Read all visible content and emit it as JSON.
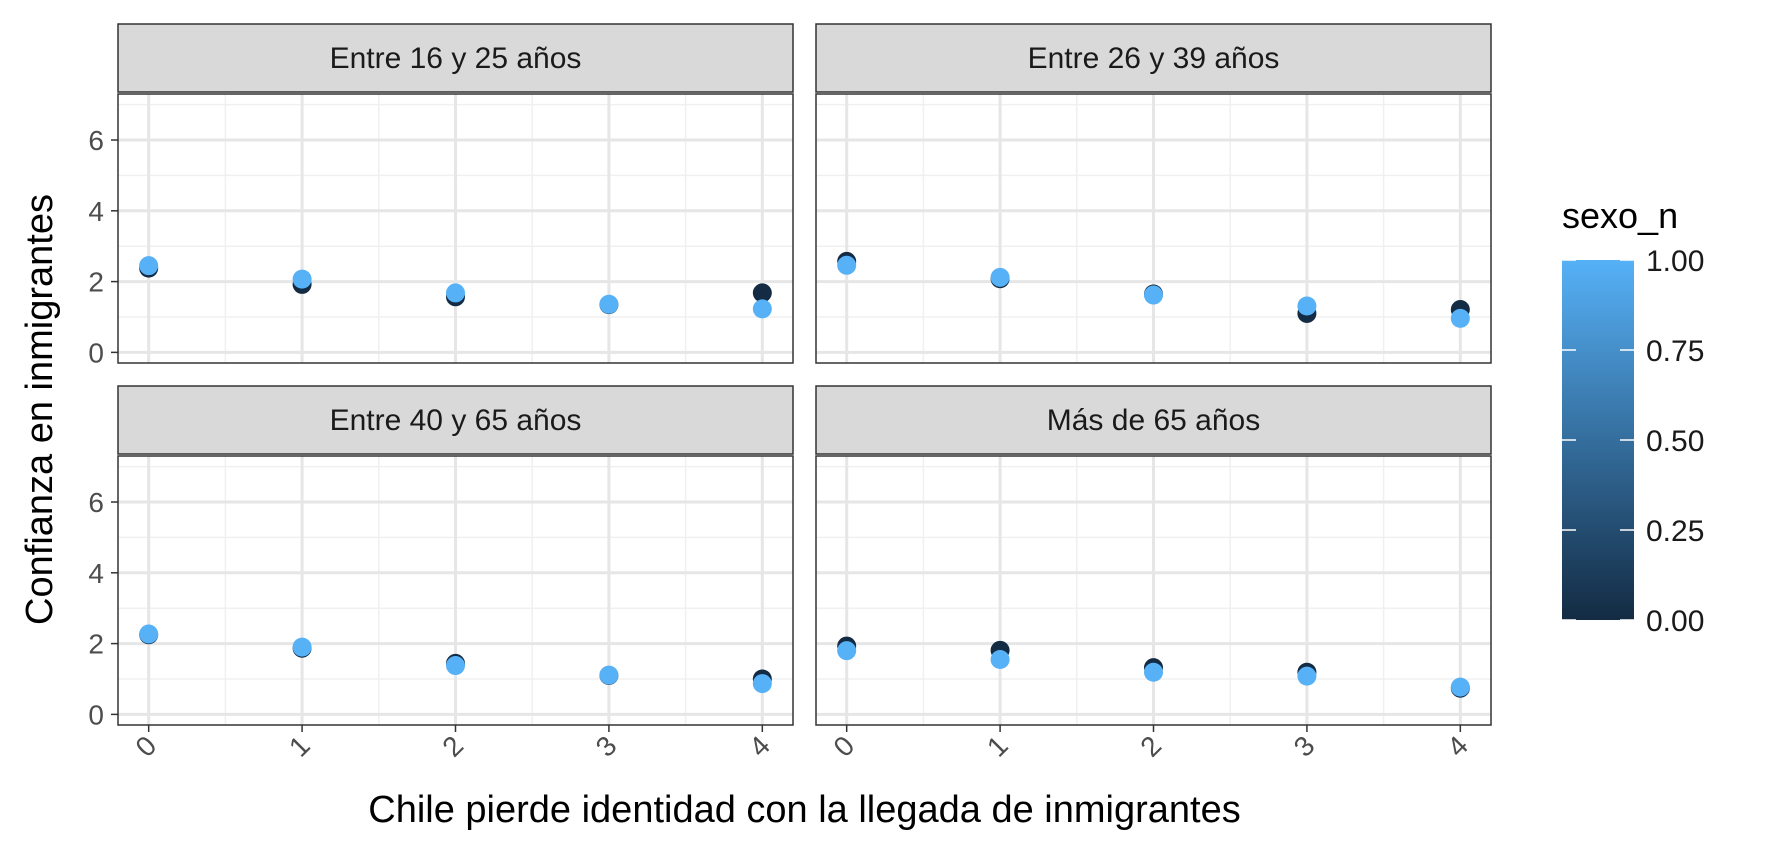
{
  "chart_data": {
    "type": "scatter",
    "facet_layout": "2x2",
    "xlabel": "Chile pierde identidad con la llegada de inmigrantes",
    "ylabel": "Confianza en inmigrantes",
    "x_ticks": [
      "0",
      "1",
      "2",
      "3",
      "4"
    ],
    "y_ticks": [
      "0",
      "2",
      "4",
      "6"
    ],
    "xlim": [
      -0.2,
      4.2
    ],
    "ylim": [
      -0.3,
      7.3
    ],
    "grid": true,
    "legend": {
      "title": "sexo_n",
      "placement": "right",
      "type": "continuous colorbar",
      "breaks": [
        "1.00",
        "0.75",
        "0.50",
        "0.25",
        "0.00"
      ],
      "low_color": "#132B43",
      "high_color": "#56B1F7",
      "range": [
        0,
        1
      ]
    },
    "facets": [
      {
        "strip": "Entre 16 y 25 años",
        "series": [
          {
            "sexo_n": 0,
            "points": [
              [
                0,
                2.38
              ],
              [
                1,
                1.92
              ],
              [
                2,
                1.57
              ],
              [
                3,
                1.35
              ],
              [
                4,
                1.68
              ]
            ]
          },
          {
            "sexo_n": 1,
            "points": [
              [
                0,
                2.45
              ],
              [
                1,
                2.07
              ],
              [
                2,
                1.68
              ],
              [
                3,
                1.36
              ],
              [
                4,
                1.23
              ]
            ]
          }
        ]
      },
      {
        "strip": "Entre 26 y 39 años",
        "series": [
          {
            "sexo_n": 0,
            "points": [
              [
                0,
                2.57
              ],
              [
                1,
                2.08
              ],
              [
                2,
                1.65
              ],
              [
                3,
                1.1
              ],
              [
                4,
                1.21
              ]
            ]
          },
          {
            "sexo_n": 1,
            "points": [
              [
                0,
                2.46
              ],
              [
                1,
                2.12
              ],
              [
                2,
                1.62
              ],
              [
                3,
                1.31
              ],
              [
                4,
                0.96
              ]
            ]
          }
        ]
      },
      {
        "strip": "Entre 40 y 65 años",
        "series": [
          {
            "sexo_n": 0,
            "points": [
              [
                0,
                2.25
              ],
              [
                1,
                1.87
              ],
              [
                2,
                1.44
              ],
              [
                3,
                1.1
              ],
              [
                4,
                1.0
              ]
            ]
          },
          {
            "sexo_n": 1,
            "points": [
              [
                0,
                2.27
              ],
              [
                1,
                1.9
              ],
              [
                2,
                1.38
              ],
              [
                3,
                1.11
              ],
              [
                4,
                0.87
              ]
            ]
          }
        ]
      },
      {
        "strip": "Más de 65 años",
        "series": [
          {
            "sexo_n": 0,
            "points": [
              [
                0,
                1.93
              ],
              [
                1,
                1.81
              ],
              [
                2,
                1.32
              ],
              [
                3,
                1.19
              ],
              [
                4,
                0.74
              ]
            ]
          },
          {
            "sexo_n": 1,
            "points": [
              [
                0,
                1.8
              ],
              [
                1,
                1.55
              ],
              [
                2,
                1.19
              ],
              [
                3,
                1.08
              ],
              [
                4,
                0.77
              ]
            ]
          }
        ]
      }
    ]
  }
}
